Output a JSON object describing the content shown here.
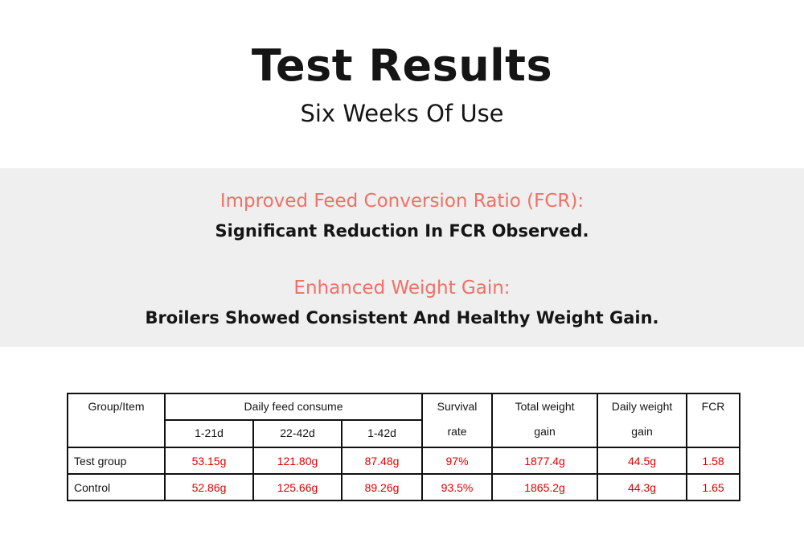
{
  "header": {
    "title": "Test Results",
    "subtitle": "Six Weeks Of Use"
  },
  "highlights": [
    {
      "heading": "Improved Feed Conversion Ratio (FCR):",
      "text": "Significant Reduction In FCR Observed."
    },
    {
      "heading": "Enhanced Weight Gain:",
      "text": "Broilers Showed Consistent And Healthy Weight Gain."
    }
  ],
  "table": {
    "columns": [
      [
        "Group/Item"
      ],
      [
        "Daily feed consume"
      ],
      [
        "Survival",
        "rate"
      ],
      [
        "Total weight",
        "gain"
      ],
      [
        "Daily weight",
        "gain"
      ],
      [
        "FCR"
      ]
    ],
    "sub_columns": [
      "1-21d",
      "22-42d",
      "1-42d"
    ],
    "rows": [
      [
        "Test group",
        "53.15g",
        "121.80g",
        "87.48g",
        "97%",
        "1877.4g",
        "44.5g",
        "1.58"
      ],
      [
        "Control",
        "52.86g",
        "125.66g",
        "89.26g",
        "93.5%",
        "1865.2g",
        "44.3g",
        "1.65"
      ]
    ]
  }
}
